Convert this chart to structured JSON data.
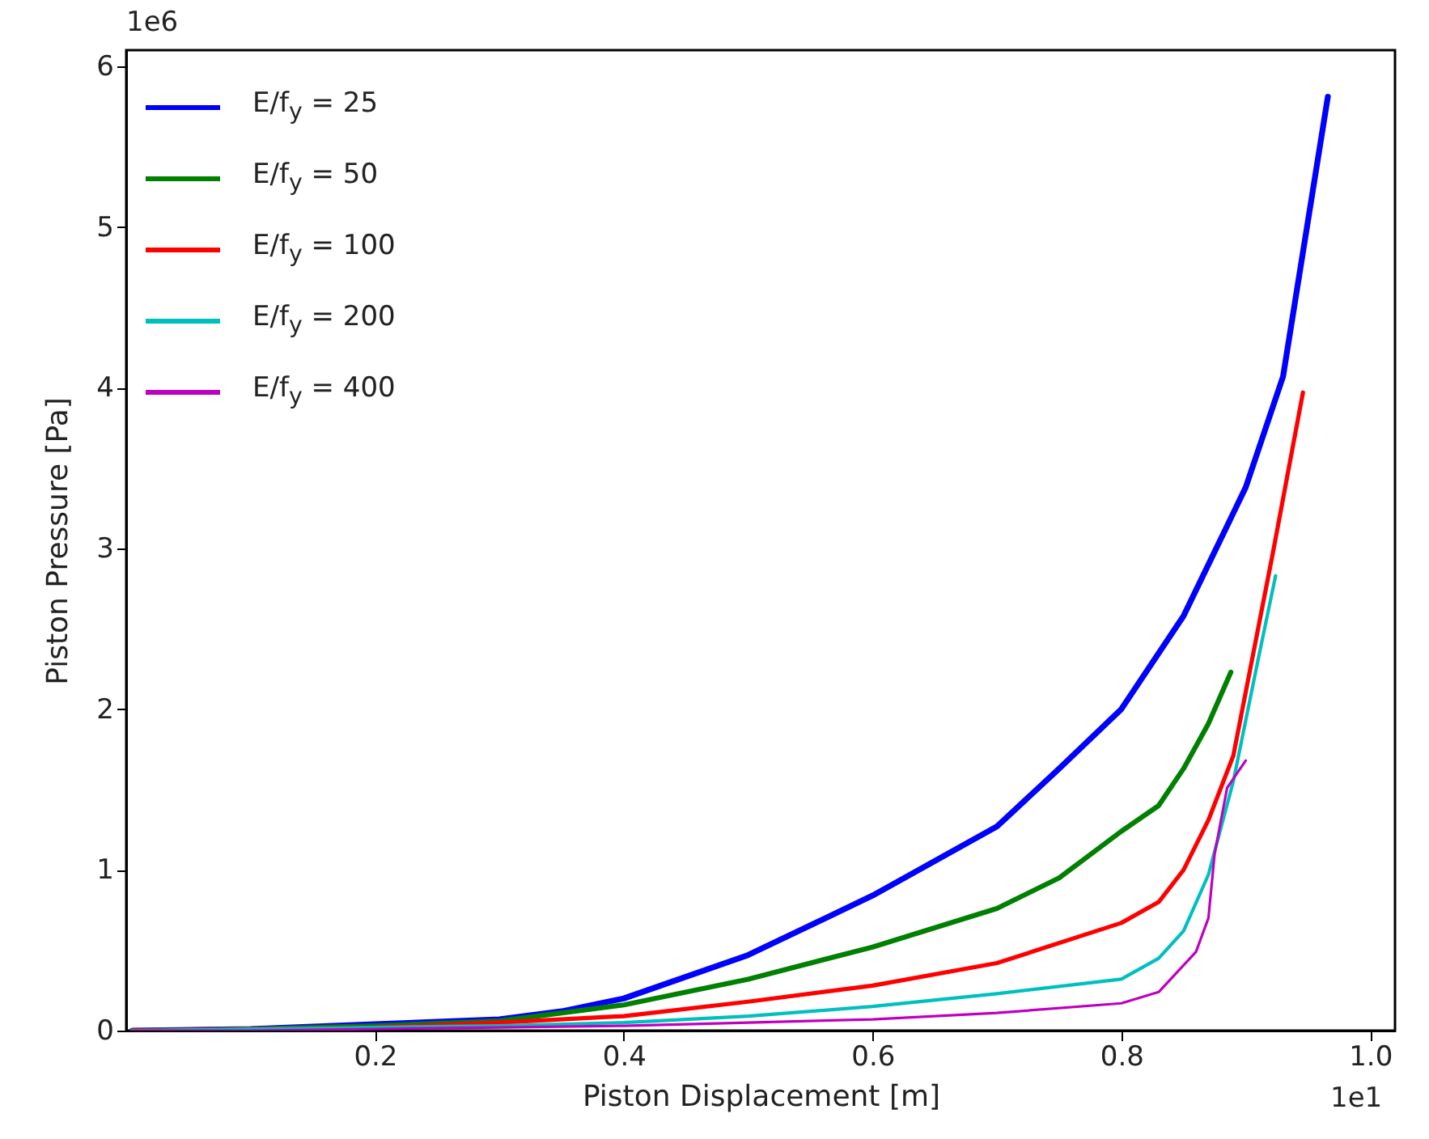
{
  "chart_data": {
    "type": "line",
    "xlabel": "Piston Displacement [m]",
    "ylabel": "Piston Pressure [Pa]",
    "annotations": [
      "1e6",
      "1e1"
    ],
    "xlim": [
      0,
      1.02
    ],
    "xticks": [
      0.2,
      0.4,
      0.6,
      0.8,
      {
        "value": 1,
        "label": "1.0"
      }
    ],
    "ylim": [
      0,
      6.1
    ],
    "yticks": [
      0,
      1,
      2,
      3,
      4,
      5,
      6
    ],
    "grid": false,
    "legend": "top left",
    "marker": "none",
    "line_style": "solid",
    "series": [
      {
        "name": "E/f$_{y}$ = 25",
        "color": "#0000ff",
        "x": [
          0.005,
          0.1,
          0.2,
          0.3,
          0.35,
          0.4,
          0.5,
          0.6,
          0.7,
          0.75,
          0.8,
          0.85,
          0.9,
          0.93,
          0.966
        ],
        "values": [
          0,
          0.01,
          0.04,
          0.07,
          0.12,
          0.2,
          0.47,
          0.84,
          1.27,
          1.63,
          2.0,
          2.58,
          3.38,
          4.07,
          5.81
        ]
      },
      {
        "name": "E/f$_{y}$ = 50",
        "color": "#008000",
        "x": [
          0.005,
          0.1,
          0.2,
          0.3,
          0.4,
          0.5,
          0.6,
          0.7,
          0.75,
          0.8,
          0.83,
          0.85,
          0.87,
          0.888
        ],
        "values": [
          0,
          0.01,
          0.03,
          0.06,
          0.16,
          0.32,
          0.52,
          0.76,
          0.95,
          1.24,
          1.4,
          1.63,
          1.91,
          2.23
        ]
      },
      {
        "name": "E/f$_{y}$ = 100",
        "color": "#ff0000",
        "x": [
          0.005,
          0.1,
          0.2,
          0.3,
          0.4,
          0.5,
          0.6,
          0.7,
          0.8,
          0.83,
          0.85,
          0.87,
          0.89,
          0.922,
          0.946
        ],
        "values": [
          0,
          0.01,
          0.02,
          0.05,
          0.09,
          0.18,
          0.28,
          0.42,
          0.67,
          0.8,
          1.0,
          1.31,
          1.71,
          2.98,
          3.97
        ]
      },
      {
        "name": "E/f$_{y}$ = 200",
        "color": "#00bfbf",
        "x": [
          0.005,
          0.1,
          0.2,
          0.3,
          0.4,
          0.5,
          0.6,
          0.7,
          0.8,
          0.83,
          0.85,
          0.87,
          0.89,
          0.91,
          0.924
        ],
        "values": [
          0,
          0.01,
          0.02,
          0.03,
          0.05,
          0.09,
          0.15,
          0.23,
          0.32,
          0.45,
          0.62,
          0.97,
          1.55,
          2.31,
          2.83
        ]
      },
      {
        "name": "E/f$_{y}$ = 400",
        "color": "#bf00bf",
        "x": [
          0.005,
          0.1,
          0.2,
          0.3,
          0.4,
          0.5,
          0.6,
          0.7,
          0.8,
          0.83,
          0.86,
          0.87,
          0.875,
          0.885,
          0.9
        ],
        "values": [
          0,
          0,
          0.01,
          0.02,
          0.03,
          0.05,
          0.07,
          0.11,
          0.17,
          0.24,
          0.49,
          0.7,
          1.1,
          1.51,
          1.68
        ]
      }
    ]
  }
}
